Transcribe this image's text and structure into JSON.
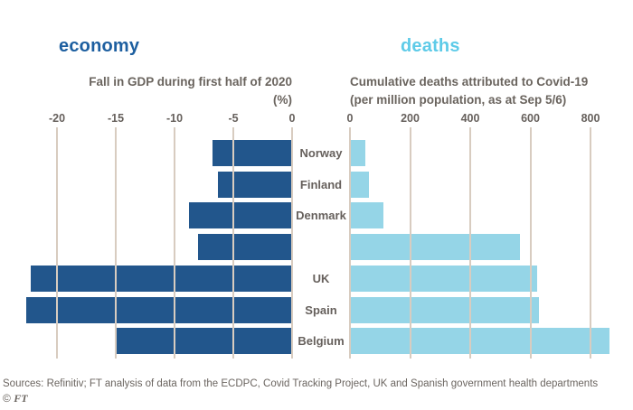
{
  "colors": {
    "background": "#ffffff",
    "economy_accent": "#1d5fa0",
    "deaths_accent": "#5ecbe8",
    "gdp_bar": "#22568c",
    "deaths_bar": "#95d5e7",
    "gridline": "#d8ccc0",
    "text_grey": "#66605c"
  },
  "categories": [
    "Norway",
    "Finland",
    "Denmark",
    "",
    "UK",
    "Spain",
    "Belgium"
  ],
  "chart_data": [
    {
      "type": "bar",
      "orientation": "horizontal",
      "title": "economy",
      "subtitle": "Fall in GDP during first half of 2020",
      "unit_label": "(%)",
      "categories": [
        "Norway",
        "Finland",
        "Denmark",
        "",
        "UK",
        "Spain",
        "Belgium"
      ],
      "values": [
        -6.8,
        -6.3,
        -8.8,
        -8.0,
        -22.2,
        -22.6,
        -15.0
      ],
      "xticks": [
        -20,
        -15,
        -10,
        -5,
        0
      ],
      "xlim": [
        -23,
        0
      ],
      "grid": true,
      "legend": false,
      "bar_color": "#22568c",
      "title_color": "#1d5fa0"
    },
    {
      "type": "bar",
      "orientation": "horizontal",
      "title": "deaths",
      "subtitle": "Cumulative deaths attributed to Covid-19",
      "subtitle2": "(per million population, as at Sep 5/6)",
      "categories": [
        "Norway",
        "Finland",
        "Denmark",
        "",
        "UK",
        "Spain",
        "Belgium"
      ],
      "values": [
        50,
        62,
        110,
        565,
        622,
        628,
        862
      ],
      "xticks": [
        0,
        200,
        400,
        600,
        800
      ],
      "xlim": [
        0,
        880
      ],
      "grid": true,
      "legend": false,
      "bar_color": "#95d5e7",
      "title_color": "#5ecbe8"
    }
  ],
  "footer": {
    "sources": "Sources: Refinitiv; FT analysis of data from the ECDPC, Covid Tracking Project, UK and Spanish government health departments",
    "copyright_symbol": "©",
    "copyright_name": "FT"
  }
}
